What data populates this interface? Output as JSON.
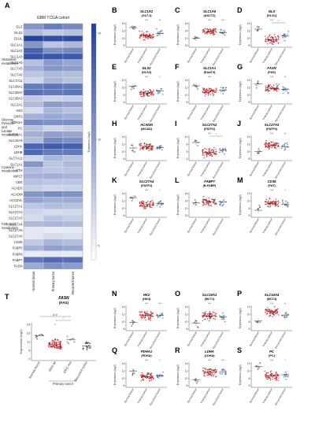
{
  "panel_a": {
    "letter": "A",
    "title": "GBM TCGA cohort",
    "genes": [
      "GLS",
      "GLS2",
      "GLUL",
      "SLC1A1",
      "SLC1A2",
      "SLC1A3",
      "SLC1A5",
      "SLC7A5",
      "SLC7A6",
      "SLC7A11",
      "SLC38A1",
      "SLC38A2",
      "SLC38A3",
      "SLC2A1",
      "HK2",
      "GRP2",
      "PDH1A",
      "PC",
      "SLC16A1",
      "SLC16A4",
      "LDHA",
      "LDHB",
      "SLC7A11",
      "SLC1A1",
      "CTH",
      "MPST",
      "CBS",
      "ACADS",
      "ACADM",
      "ACADVL",
      "SLC27A1",
      "SLC27A2",
      "SLC27A3",
      "SLC27A4",
      "SLC27A5",
      "SLC27A6",
      "CD36",
      "FABP5",
      "FABP6",
      "FABP7",
      "FASN"
    ],
    "groups": [
      {
        "label": "Glutamine metabolism",
        "start": 0,
        "end": 12
      },
      {
        "label": "Glucose, Pyruvate and Lactate metabolism",
        "start": 13,
        "end": 21
      },
      {
        "label": "Cysteine metabolism",
        "start": 22,
        "end": 26
      },
      {
        "label": "Fatty acid metabolism",
        "start": 27,
        "end": 40
      }
    ],
    "columns": [
      "Normal tissue",
      "Primary tumor",
      "Recurrent tumor"
    ],
    "colorbar": {
      "label": "Expression (log2)",
      "ticks": [
        "15",
        "10",
        "5"
      ],
      "low": "#ffffff",
      "high": "#203f9a"
    },
    "values": [
      [
        0.55,
        0.68,
        0.62
      ],
      [
        0.35,
        0.28,
        0.32
      ],
      [
        0.98,
        0.92,
        0.94
      ],
      [
        0.55,
        0.3,
        0.36
      ],
      [
        0.82,
        0.58,
        0.62
      ],
      [
        0.9,
        0.88,
        0.86
      ],
      [
        0.32,
        0.52,
        0.46
      ],
      [
        0.42,
        0.55,
        0.52
      ],
      [
        0.3,
        0.36,
        0.34
      ],
      [
        0.22,
        0.38,
        0.32
      ],
      [
        0.68,
        0.72,
        0.7
      ],
      [
        0.75,
        0.7,
        0.72
      ],
      [
        0.28,
        0.22,
        0.25
      ],
      [
        0.35,
        0.52,
        0.48
      ],
      [
        0.18,
        0.38,
        0.32
      ],
      [
        0.4,
        0.45,
        0.42
      ],
      [
        0.6,
        0.58,
        0.58
      ],
      [
        0.32,
        0.22,
        0.26
      ],
      [
        0.42,
        0.5,
        0.47
      ],
      [
        0.35,
        0.62,
        0.58
      ],
      [
        0.8,
        0.85,
        0.83
      ],
      [
        0.78,
        0.68,
        0.7
      ],
      [
        0.22,
        0.38,
        0.32
      ],
      [
        0.55,
        0.3,
        0.36
      ],
      [
        0.35,
        0.3,
        0.32
      ],
      [
        0.4,
        0.42,
        0.4
      ],
      [
        0.32,
        0.3,
        0.3
      ],
      [
        0.25,
        0.22,
        0.24
      ],
      [
        0.55,
        0.6,
        0.58
      ],
      [
        0.48,
        0.42,
        0.44
      ],
      [
        0.3,
        0.35,
        0.32
      ],
      [
        0.22,
        0.18,
        0.2
      ],
      [
        0.18,
        0.3,
        0.26
      ],
      [
        0.35,
        0.38,
        0.36
      ],
      [
        0.12,
        0.1,
        0.11
      ],
      [
        0.12,
        0.18,
        0.16
      ],
      [
        0.28,
        0.38,
        0.34
      ],
      [
        0.4,
        0.5,
        0.46
      ],
      [
        0.1,
        0.12,
        0.11
      ],
      [
        0.72,
        0.78,
        0.76
      ],
      [
        0.45,
        0.58,
        0.52
      ]
    ]
  },
  "scatter_panels": [
    {
      "letter": "B",
      "gene": "SLC1A2",
      "protein": "(GLT-1)",
      "ticks": [
        "15",
        "13",
        "11",
        "9"
      ],
      "nm": 0.78,
      "pm": 0.45,
      "rm": 0.55,
      "sig": [
        "",
        "***",
        "**"
      ]
    },
    {
      "letter": "C",
      "gene": "SLC1A5",
      "protein": "(ASCT2)",
      "ticks": [
        "16",
        "14",
        "12",
        "10"
      ],
      "nm": 0.35,
      "pm": 0.62,
      "rm": 0.58,
      "sig": [
        "",
        "***",
        "***"
      ]
    },
    {
      "letter": "D",
      "gene": "GLS",
      "protein": "(GLS1)",
      "ticks": [
        "14",
        "12",
        "10",
        "8"
      ],
      "nm": 0.72,
      "pm": 0.3,
      "rm": 0.45,
      "sig": [
        "",
        "***",
        ""
      ],
      "bracket": "*"
    },
    {
      "letter": "E",
      "gene": "GLS2",
      "protein": "(GLS2)",
      "ticks": [
        "12",
        "10",
        "8",
        "6"
      ],
      "nm": 0.7,
      "pm": 0.42,
      "rm": 0.52,
      "sig": [
        "",
        "***",
        "*"
      ]
    },
    {
      "letter": "F",
      "gene": "SLC1A1",
      "protein": "(EAAT3)",
      "ticks": [
        "14",
        "12",
        "10",
        "8"
      ],
      "nm": 0.72,
      "pm": 0.5,
      "rm": 0.55,
      "sig": [
        "",
        "***",
        ""
      ]
    },
    {
      "letter": "G",
      "gene": "FASN",
      "protein": "(FAS)",
      "ticks": [
        "14",
        "12",
        "10",
        "8"
      ],
      "nm": 0.8,
      "pm": 0.62,
      "rm": 0.58,
      "sig": [
        "",
        "***",
        "**"
      ]
    },
    {
      "letter": "H",
      "gene": "ACADM",
      "protein": "(MCAD)",
      "ticks": [
        "14",
        "12",
        "10",
        "8"
      ],
      "nm": 0.5,
      "pm": 0.55,
      "rm": 0.52,
      "sig": [
        "",
        "",
        ""
      ]
    },
    {
      "letter": "I",
      "gene": "SLC27A2",
      "protein": "(FATP2)",
      "ticks": [
        "10",
        "8",
        "6",
        "4"
      ],
      "nm": 0.72,
      "pm": 0.32,
      "rm": 0.42,
      "sig": [
        "",
        "***",
        ""
      ],
      "bracket": "*"
    },
    {
      "letter": "J",
      "gene": "SLC27A3",
      "protein": "(FATP3)",
      "ticks": [
        "14",
        "12",
        "10",
        "8"
      ],
      "nm": 0.35,
      "pm": 0.6,
      "rm": 0.55,
      "sig": [
        "",
        "***",
        "**"
      ]
    },
    {
      "letter": "K",
      "gene": "SLC27A4",
      "protein": "(FATP4)",
      "ticks": [
        "14",
        "12",
        "10",
        "8"
      ],
      "nm": 0.78,
      "pm": 0.5,
      "rm": 0.55,
      "sig": [
        "",
        "***",
        "*"
      ]
    },
    {
      "letter": "L",
      "gene": "FABP7",
      "protein": "(B-FABP)",
      "ticks": [
        "16",
        "14",
        "12",
        "10"
      ],
      "nm": 0.58,
      "pm": 0.62,
      "rm": 0.6,
      "sig": [
        "",
        "",
        ""
      ]
    },
    {
      "letter": "M",
      "gene": "CD36",
      "protein": "(FAT)",
      "ticks": [
        "12",
        "10",
        "8",
        "6"
      ],
      "nm": 0.28,
      "pm": 0.55,
      "rm": 0.52,
      "sig": [
        "",
        "***",
        "*"
      ]
    },
    {
      "letter": "N",
      "gene": "HK2",
      "protein": "(HKII)",
      "ticks": [
        "14",
        "12",
        "10",
        "8"
      ],
      "nm": 0.32,
      "pm": 0.62,
      "rm": 0.6,
      "sig": [
        "",
        "***",
        "***"
      ]
    },
    {
      "letter": "O",
      "gene": "SLC16A1",
      "protein": "(MCT1)",
      "ticks": [
        "14",
        "12",
        "10",
        "8"
      ],
      "nm": 0.3,
      "pm": 0.58,
      "rm": 0.55,
      "sig": [
        "",
        "***",
        ""
      ]
    },
    {
      "letter": "P",
      "gene": "SLC16A4",
      "protein": "(MCT4)",
      "ticks": [
        "12",
        "10",
        "8",
        "6"
      ],
      "nm": 0.38,
      "pm": 0.75,
      "rm": 0.62,
      "sig": [
        "",
        "***",
        "**"
      ]
    },
    {
      "letter": "Q",
      "gene": "PDHA1",
      "protein": "(PDHA)",
      "ticks": [
        "14",
        "12",
        "10",
        "8"
      ],
      "nm": 0.65,
      "pm": 0.42,
      "rm": 0.45,
      "sig": [
        "",
        "***",
        "*"
      ]
    },
    {
      "letter": "R",
      "gene": "LDHA",
      "protein": "(LDHA)",
      "ticks": [
        "14",
        "12",
        "10",
        "8"
      ],
      "nm": 0.3,
      "pm": 0.6,
      "rm": 0.62,
      "sig": [
        "",
        "***",
        "***"
      ]
    },
    {
      "letter": "S",
      "gene": "PC",
      "protein": "(PC)",
      "ticks": [
        "12",
        "10",
        "8",
        "6"
      ],
      "nm": 0.82,
      "pm": 0.45,
      "rm": 0.5,
      "sig": [
        "",
        "***",
        "*"
      ]
    }
  ],
  "panel_t": {
    "letter": "T",
    "gene": "FASN",
    "protein": "(FAS)",
    "ylabel": "Expression (log2)",
    "ticks": [
      "15",
      "13",
      "11",
      "9",
      "7"
    ],
    "xlabels": [
      "Normal tissue",
      "IDH1 wt",
      "IDH1 mut",
      "Recurrent tumor"
    ],
    "group_label": "Primary tumor",
    "sig_brackets": [
      "# #",
      "*",
      "*"
    ]
  },
  "scatter_common": {
    "ylabel": "Expression (log2)",
    "xlabels": [
      "Normal tissue",
      "Primary tumor",
      "Recurrent tumor"
    ]
  }
}
